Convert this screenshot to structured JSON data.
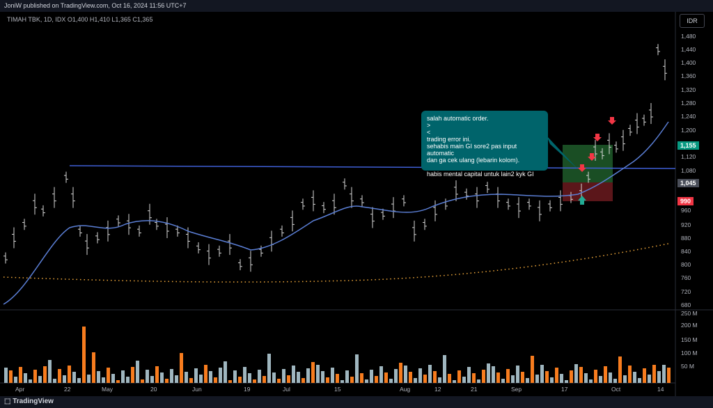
{
  "header": {
    "published_text": "JoniW published on TradingView.com, Oct 16, 2024 11:56 UTC+7"
  },
  "legend": {
    "symbol_line": "TIMAH TBK, 1D, IDX  O1,400  H1,410  L1,365  C1,365"
  },
  "currency_button": "IDR",
  "price_axis": {
    "ticks": [
      "1,480",
      "1,440",
      "1,400",
      "1,360",
      "1,320",
      "1,280",
      "1,240",
      "1,200",
      "1,120",
      "1,080",
      "960",
      "920",
      "880",
      "840",
      "800",
      "760",
      "720",
      "680"
    ]
  },
  "volume_axis": {
    "ticks": [
      "250 M",
      "200 M",
      "150 M",
      "100 M",
      "50 M"
    ]
  },
  "time_axis": {
    "ticks": [
      "Apr",
      "22",
      "May",
      "20",
      "Jun",
      "19",
      "Jul",
      "15",
      "Aug",
      "12",
      "21",
      "Sep",
      "17",
      "Oct",
      "14"
    ]
  },
  "price_tags": [
    {
      "label": "1,155",
      "color": "#089981"
    },
    {
      "label": "1,045",
      "color": "#4a4e59"
    },
    {
      "label": "990",
      "color": "#f23645"
    }
  ],
  "annotation": {
    "lines": [
      "salah automatic order.",
      ">",
      "<",
      "trading error ini.",
      "sehabis main GI sore2 pas input automatic",
      "dan ga cek ulang (lebarin kolom).",
      "",
      "habis mental capital untuk lain2 kyk GI"
    ]
  },
  "footer": {
    "brand": "TradingView"
  },
  "colors": {
    "ma_fast": "#5b7fd6",
    "ma_slow": "#f2a93b",
    "trendline": "#3f5fd6",
    "vol_up": "#9fb6bf",
    "vol_down": "#f77c1e"
  }
}
